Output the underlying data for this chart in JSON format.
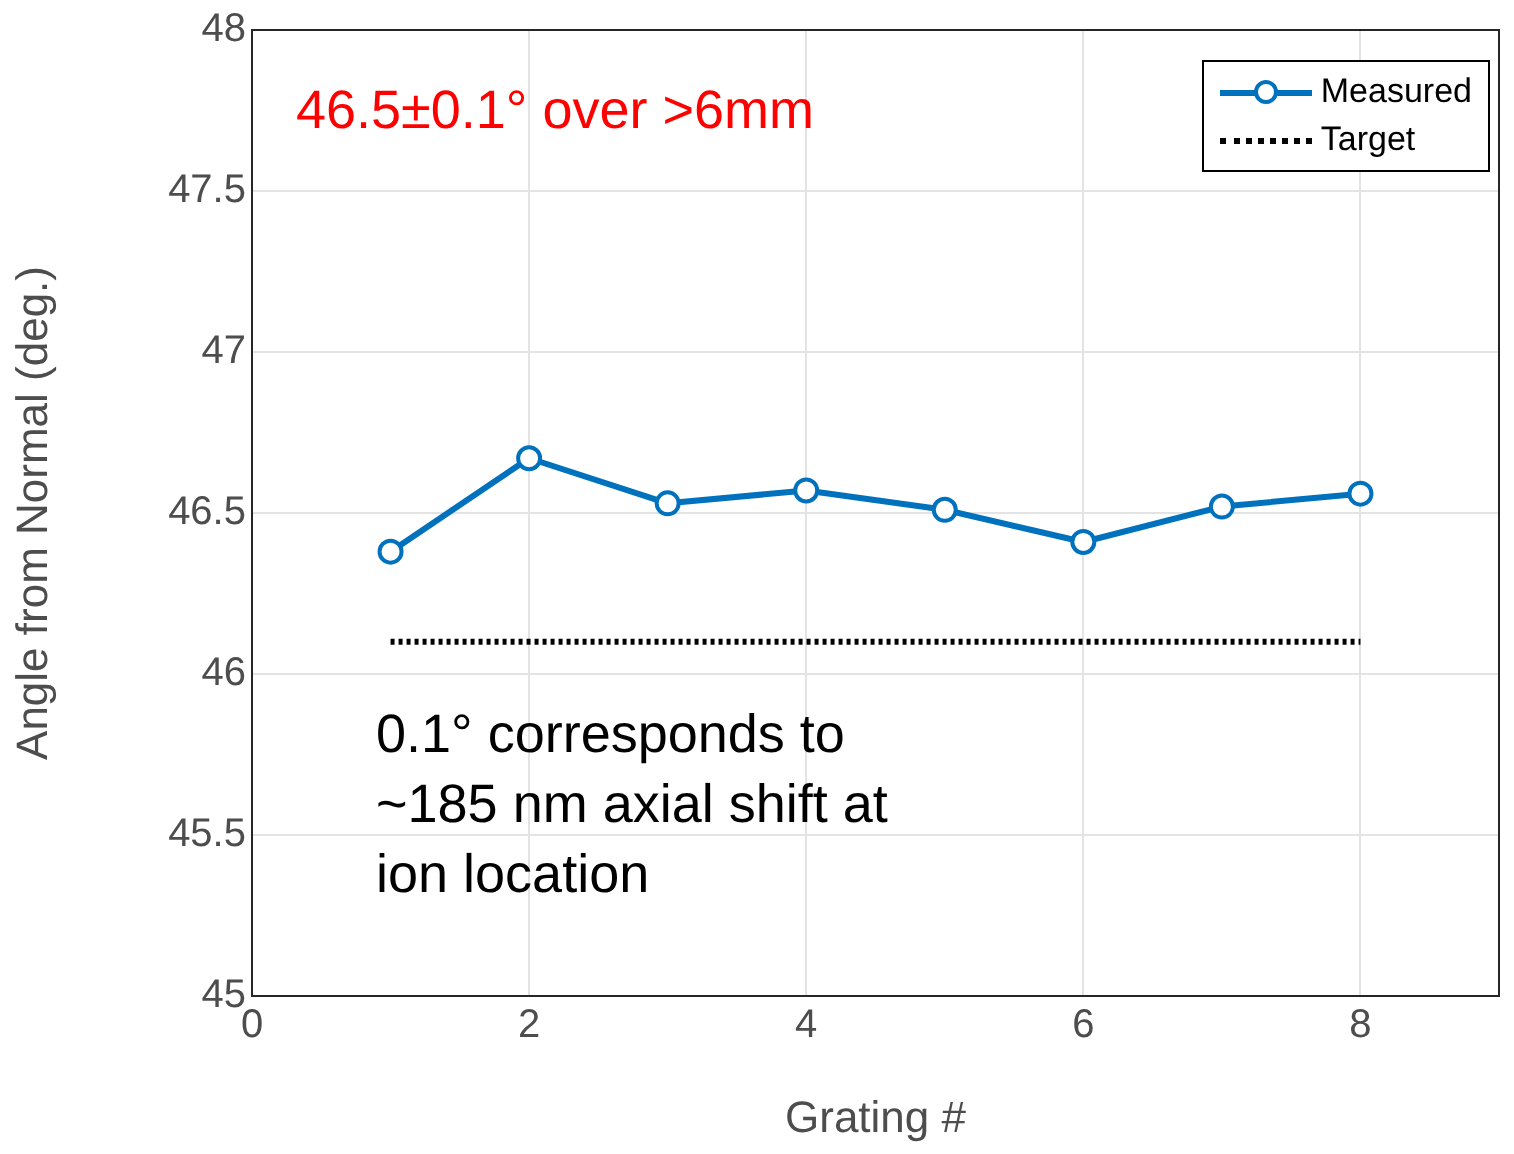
{
  "chart_data": {
    "type": "line",
    "xlabel": "Grating #",
    "ylabel": "Angle from Normal (deg.)",
    "xlim": [
      0,
      9
    ],
    "xticks": [
      0,
      2,
      4,
      6,
      8
    ],
    "ylim": [
      45,
      48
    ],
    "yticks": [
      45,
      45.5,
      46,
      46.5,
      47,
      47.5,
      48
    ],
    "grid": true,
    "legend": "top right",
    "series": [
      {
        "name": "Measured",
        "color": "#0072bd",
        "x": [
          1,
          2,
          3,
          4,
          5,
          6,
          7,
          8
        ],
        "values": [
          46.38,
          46.67,
          46.53,
          46.57,
          46.51,
          46.41,
          46.52,
          46.56
        ],
        "marker": "circle",
        "line_style": "solid"
      },
      {
        "name": "Target",
        "color": "#000000",
        "x": [
          1,
          8
        ],
        "values": [
          46.1,
          46.1
        ],
        "marker": "none",
        "line_style": "dotted"
      }
    ],
    "annotations": [
      "46.5±0.1° over >6mm",
      "0.1° corresponds to ~185 nm axial shift at ion location"
    ]
  }
}
